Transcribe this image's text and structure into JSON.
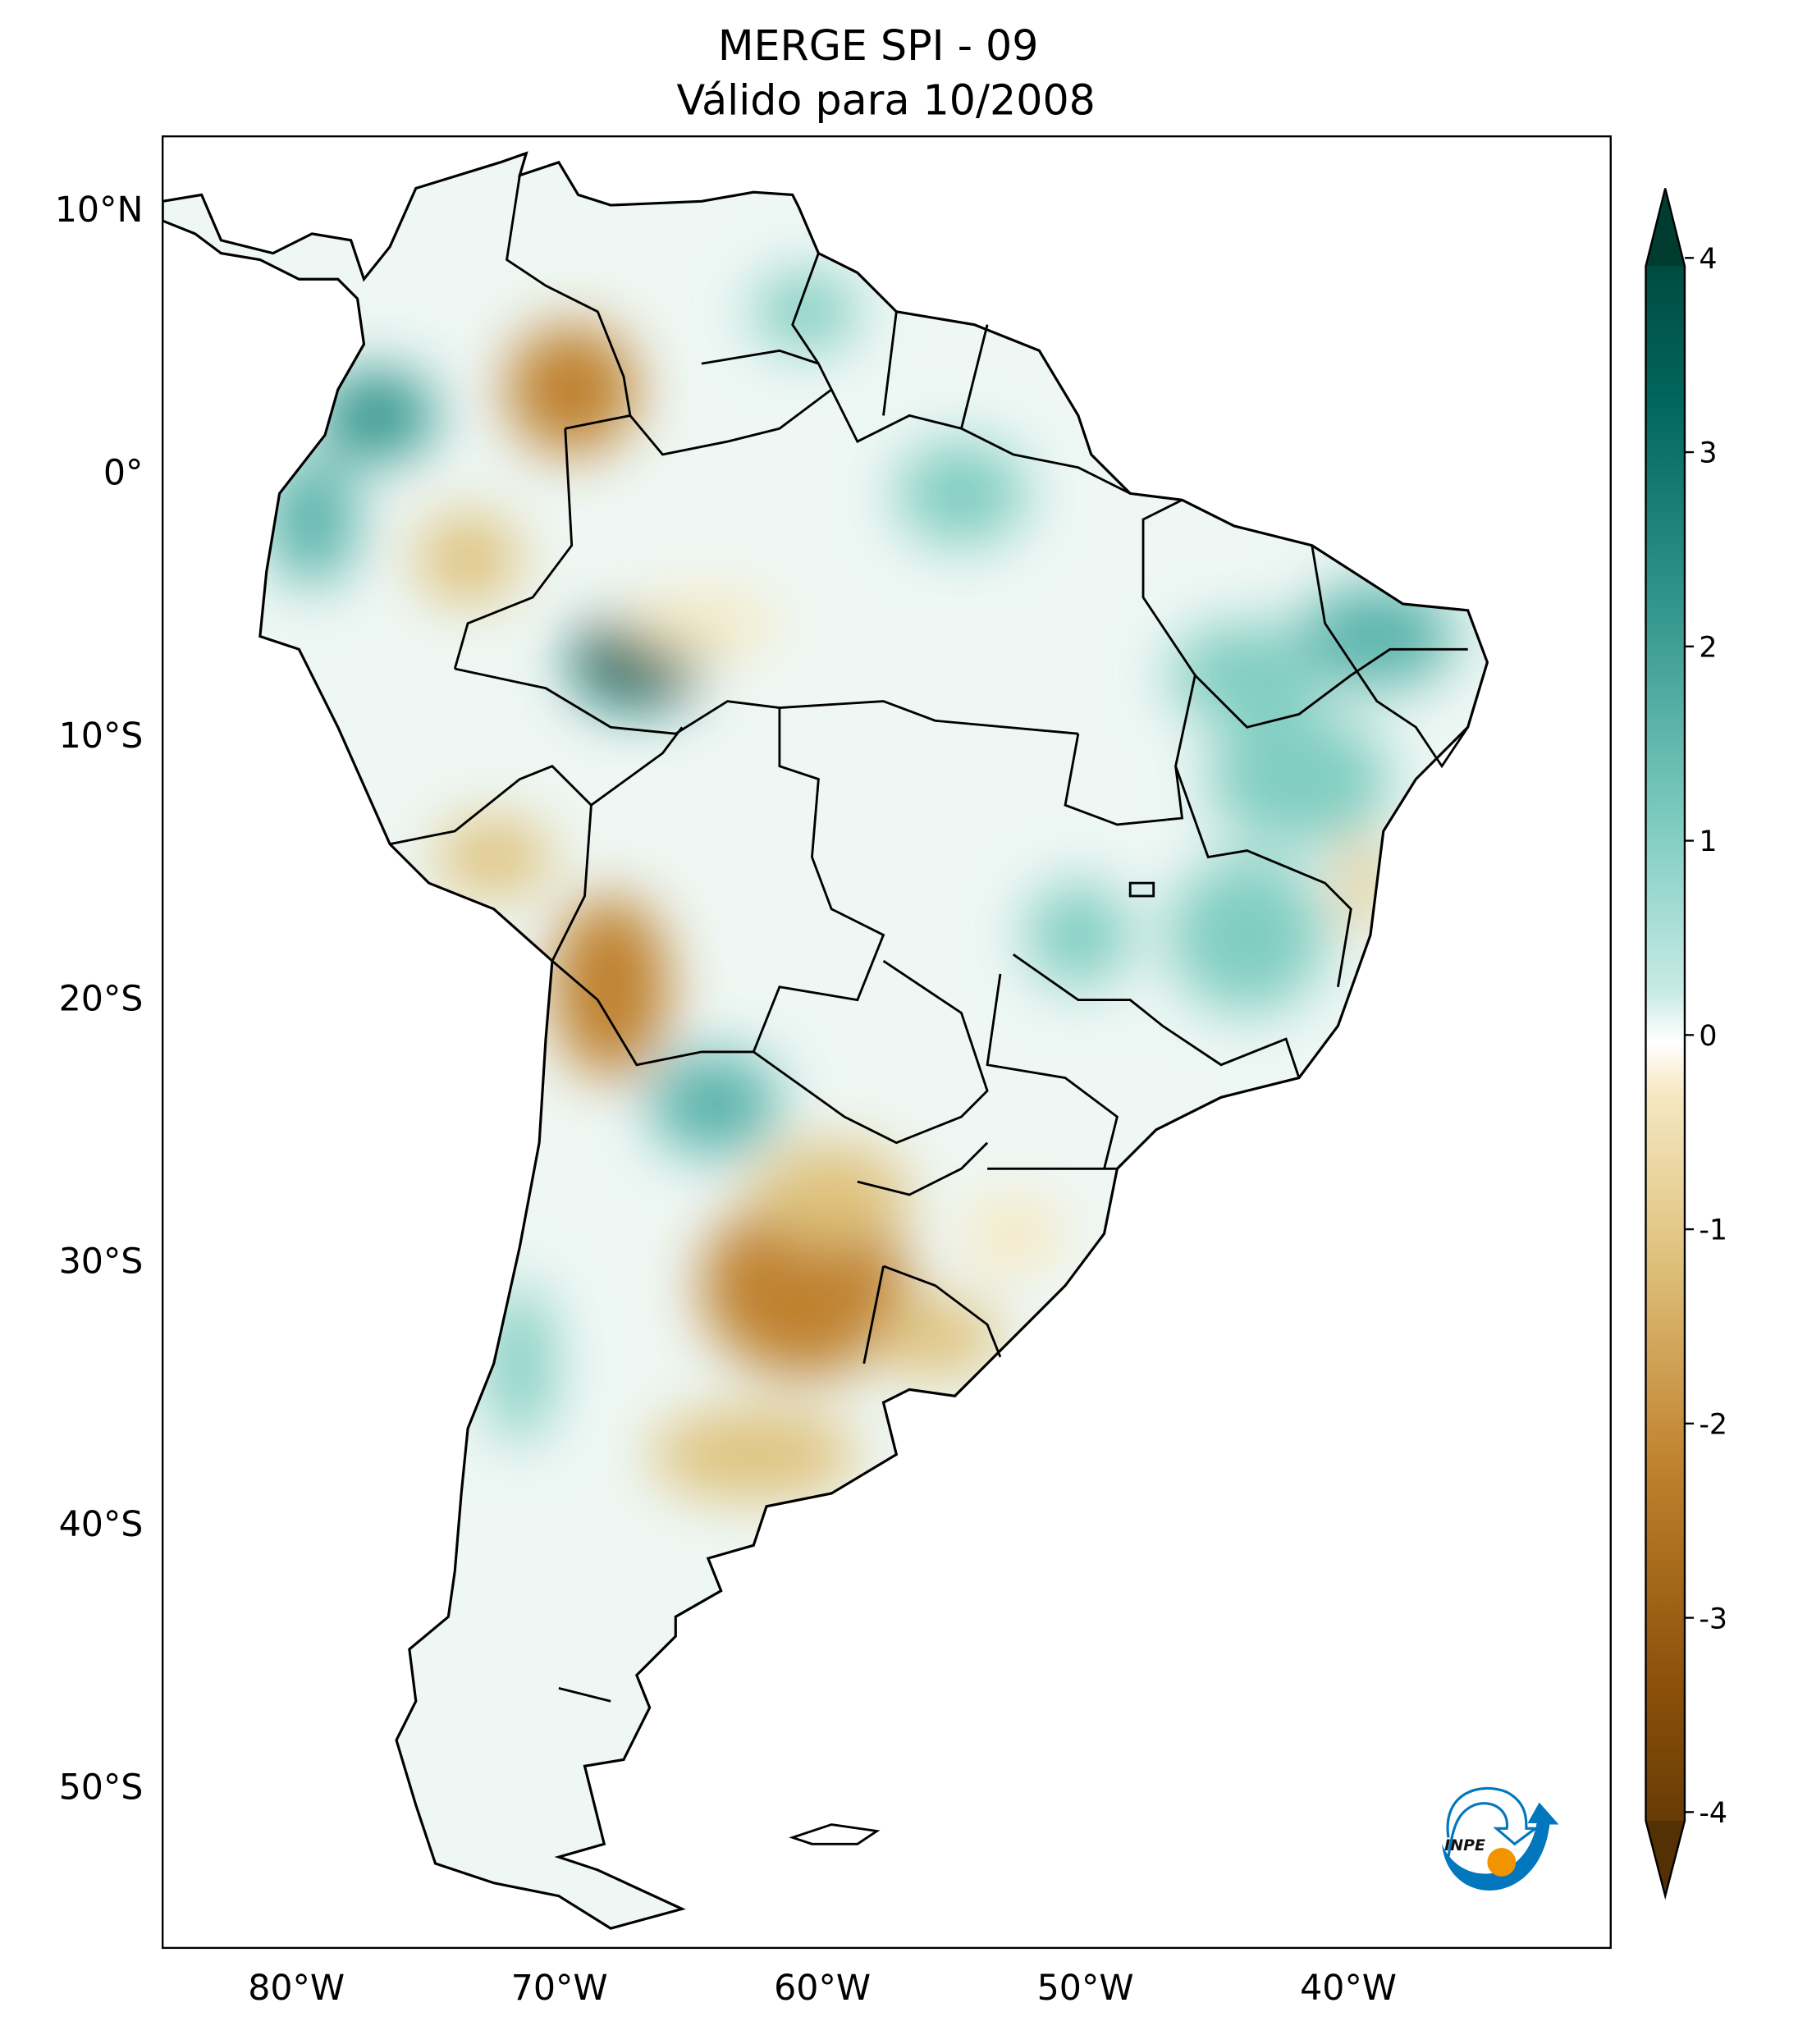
{
  "title": {
    "line1": "MERGE   SPI - 09",
    "line2": "Válido para 10/2008"
  },
  "map": {
    "projection": "PlateCarree",
    "extent_lon": [
      -85,
      -30
    ],
    "extent_lat": [
      -56,
      13
    ],
    "lat_ticks": [
      {
        "value": 10,
        "label": "10°N"
      },
      {
        "value": 0,
        "label": "0°"
      },
      {
        "value": -10,
        "label": "10°S"
      },
      {
        "value": -20,
        "label": "20°S"
      },
      {
        "value": -30,
        "label": "30°S"
      },
      {
        "value": -40,
        "label": "40°S"
      },
      {
        "value": -50,
        "label": "50°S"
      }
    ],
    "lon_ticks": [
      {
        "value": -80,
        "label": "80°W"
      },
      {
        "value": -70,
        "label": "70°W"
      },
      {
        "value": -60,
        "label": "60°W"
      },
      {
        "value": -50,
        "label": "50°W"
      },
      {
        "value": -40,
        "label": "40°W"
      }
    ]
  },
  "colorbar": {
    "colormap": "BrBG",
    "range": [
      -4,
      4
    ],
    "extend": "both",
    "ticks": [
      {
        "value": 4,
        "label": "4"
      },
      {
        "value": 3,
        "label": "3"
      },
      {
        "value": 2,
        "label": "2"
      },
      {
        "value": 1,
        "label": "1"
      },
      {
        "value": 0,
        "label": "0"
      },
      {
        "value": -1,
        "label": "-1"
      },
      {
        "value": -2,
        "label": "-2"
      },
      {
        "value": -3,
        "label": "-3"
      },
      {
        "value": -4,
        "label": "-4"
      }
    ],
    "colors": {
      "wet_max": "#003c30",
      "wet": "#35978f",
      "wet_light": "#c7eae5",
      "neutral": "#f5f5f5",
      "dry_light": "#f6e8c3",
      "dry": "#bf812d",
      "dry_max": "#543005"
    }
  },
  "logo": {
    "text": "INPE",
    "colors": {
      "blue": "#0277bd",
      "orange": "#f29400"
    }
  }
}
